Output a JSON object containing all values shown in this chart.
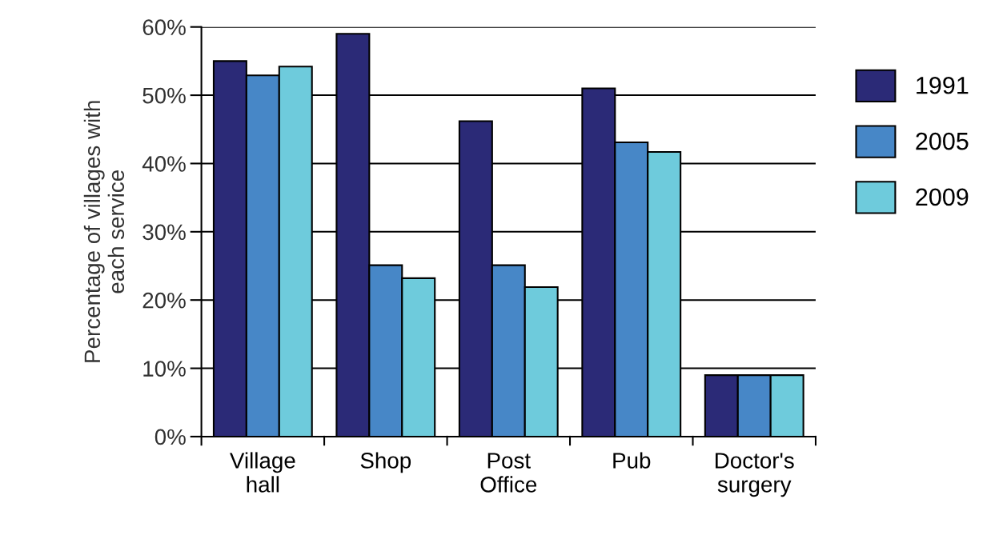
{
  "chart_data": {
    "type": "bar",
    "ylabel": "Percentage of villages with\neach service",
    "categories": [
      "Village\nhall",
      "Shop",
      "Post\nOffice",
      "Pub",
      "Doctor's\nsurgery"
    ],
    "series": [
      {
        "name": "1991",
        "color": "#2b2a77",
        "values": [
          55,
          59,
          46.2,
          51,
          9
        ]
      },
      {
        "name": "2005",
        "color": "#4787c7",
        "values": [
          52.9,
          25.1,
          25.1,
          43.1,
          9
        ]
      },
      {
        "name": "2009",
        "color": "#6ecbdc",
        "values": [
          54.2,
          23.2,
          21.9,
          41.7,
          9
        ]
      }
    ],
    "ylim": [
      0,
      60
    ],
    "yticks": [
      {
        "value": 0,
        "label": "0%"
      },
      {
        "value": 10,
        "label": "10%"
      },
      {
        "value": 20,
        "label": "20%"
      },
      {
        "value": 30,
        "label": "30%"
      },
      {
        "value": 40,
        "label": "40%"
      },
      {
        "value": 50,
        "label": "50%"
      },
      {
        "value": 60,
        "label": "60%"
      }
    ],
    "grid": "y",
    "legend": "right"
  }
}
